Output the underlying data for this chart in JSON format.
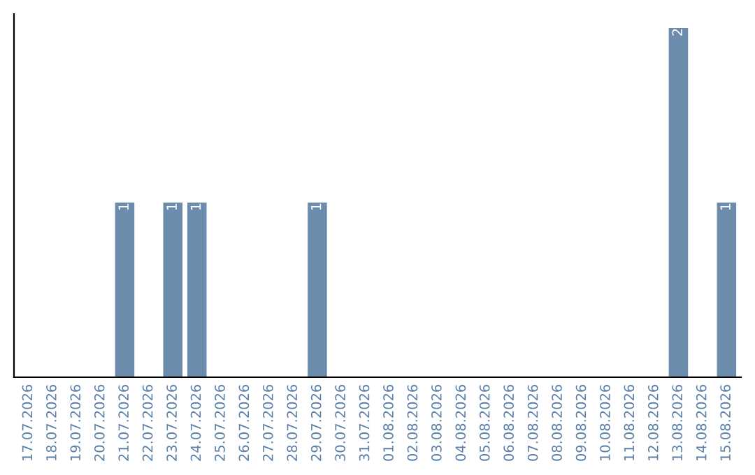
{
  "chart_data": {
    "type": "bar",
    "categories": [
      "17.07.2026",
      "18.07.2026",
      "19.07.2026",
      "20.07.2026",
      "21.07.2026",
      "22.07.2026",
      "23.07.2026",
      "24.07.2026",
      "25.07.2026",
      "26.07.2026",
      "27.07.2026",
      "28.07.2026",
      "29.07.2026",
      "30.07.2026",
      "31.07.2026",
      "01.08.2026",
      "02.08.2026",
      "03.08.2026",
      "04.08.2026",
      "05.08.2026",
      "06.08.2026",
      "07.08.2026",
      "08.08.2026",
      "09.08.2026",
      "10.08.2026",
      "11.08.2026",
      "12.08.2026",
      "13.08.2026",
      "14.08.2026",
      "15.08.2026"
    ],
    "values": [
      0,
      0,
      0,
      0,
      1,
      0,
      1,
      1,
      0,
      0,
      0,
      0,
      1,
      0,
      0,
      0,
      0,
      0,
      0,
      0,
      0,
      0,
      0,
      0,
      0,
      0,
      0,
      2,
      0,
      1
    ],
    "value_labels": [
      null,
      null,
      null,
      null,
      "1",
      null,
      "1",
      "1",
      null,
      null,
      null,
      null,
      "1",
      null,
      null,
      null,
      null,
      null,
      null,
      null,
      null,
      null,
      null,
      null,
      null,
      null,
      null,
      "2",
      null,
      "1"
    ],
    "color": "#6b8cac",
    "tick_labels": "x",
    "grid": false,
    "legend": false
  }
}
